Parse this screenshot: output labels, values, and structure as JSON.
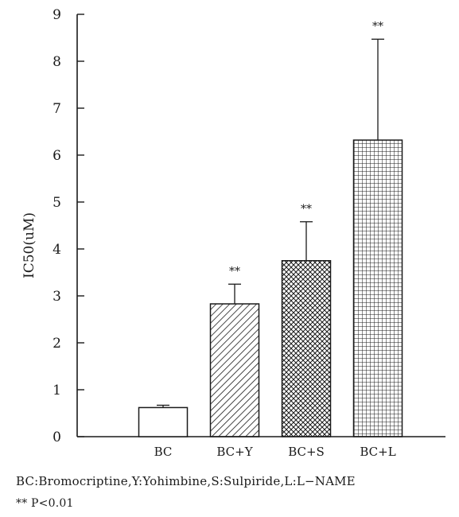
{
  "chart_data": {
    "type": "bar",
    "title": "",
    "xlabel": "",
    "ylabel": "IC50(uM)",
    "ylim": [
      0,
      9
    ],
    "yticks": [
      0,
      1,
      2,
      3,
      4,
      5,
      6,
      7,
      8,
      9
    ],
    "categories": [
      "BC",
      "BC+Y",
      "BC+S",
      "BC+L"
    ],
    "values": [
      0.62,
      2.83,
      3.75,
      6.32
    ],
    "error": [
      0.05,
      0.42,
      0.83,
      2.15
    ],
    "significance": [
      "",
      "**",
      "**",
      "**"
    ],
    "patterns": [
      "none",
      "diagonal",
      "crosshatch",
      "grid"
    ],
    "grid": false,
    "legend": "none"
  },
  "footnotes": {
    "abbreviations": "BC:Bromocriptine,Y:Yohimbine,S:Sulpiride,L:L−NAME",
    "significance": "** P<0.01"
  },
  "colors": {
    "ink": "#1a1a1a",
    "background": "#ffffff"
  }
}
